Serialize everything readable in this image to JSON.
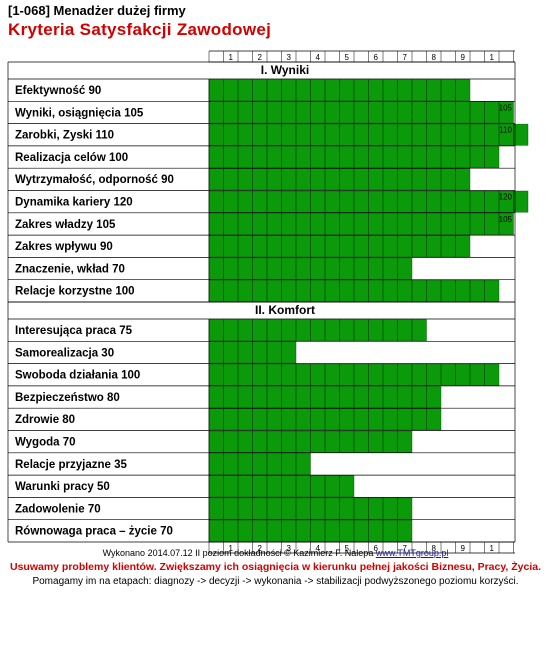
{
  "header": {
    "code": "[1-068]",
    "subtitle": "Menadżer dużej firmy",
    "title": "Kryteria Satysfakcji Zawodowej"
  },
  "colors": {
    "bar": "#0a9a0a",
    "bar_border": "#004d00",
    "title": "#d40000",
    "grid": "#000000"
  },
  "chart_data": {
    "type": "bar",
    "orientation": "horizontal",
    "scale_ticks": [
      "1",
      "2",
      "3",
      "4",
      "5",
      "6",
      "7",
      "8",
      "9",
      "1",
      ""
    ],
    "xlim": [
      0,
      110
    ],
    "sections": [
      {
        "name": "I.  Wyniki",
        "items": [
          {
            "label": "Efektywność  90",
            "value": 90,
            "data_label": ""
          },
          {
            "label": "Wyniki, osiągnięcia 105",
            "value": 105,
            "data_label": "105"
          },
          {
            "label": "Zarobki, Zyski  110",
            "value": 110,
            "data_label": "110"
          },
          {
            "label": "Realizacja celów  100",
            "value": 100,
            "data_label": ""
          },
          {
            "label": "Wytrzymałość, odporność 90",
            "value": 90,
            "data_label": ""
          },
          {
            "label": "Dynamika kariery 120",
            "value": 120,
            "data_label": "120"
          },
          {
            "label": "Zakres władzy 105",
            "value": 105,
            "data_label": "105"
          },
          {
            "label": "Zakres wpływu  90",
            "value": 90,
            "data_label": ""
          },
          {
            "label": "Znaczenie, wkład  70",
            "value": 70,
            "data_label": ""
          },
          {
            "label": "Relacje korzystne 100",
            "value": 100,
            "data_label": ""
          }
        ]
      },
      {
        "name": "II.  Komfort",
        "items": [
          {
            "label": "Interesująca praca 75",
            "value": 75,
            "data_label": ""
          },
          {
            "label": "Samorealizacja 30",
            "value": 30,
            "data_label": ""
          },
          {
            "label": "Swoboda działania 100",
            "value": 100,
            "data_label": ""
          },
          {
            "label": "Bezpieczeństwo 80",
            "value": 80,
            "data_label": ""
          },
          {
            "label": "Zdrowie 80",
            "value": 80,
            "data_label": ""
          },
          {
            "label": "Wygoda 70",
            "value": 70,
            "data_label": ""
          },
          {
            "label": "Relacje przyjazne 35",
            "value": 35,
            "data_label": ""
          },
          {
            "label": "Warunki pracy 50",
            "value": 50,
            "data_label": ""
          },
          {
            "label": "Zadowolenie 70",
            "value": 70,
            "data_label": ""
          },
          {
            "label": "Równowaga praca – życie 70",
            "value": 70,
            "data_label": ""
          }
        ]
      }
    ]
  },
  "footer": {
    "credit": "Wykonano 2014.07.12  II poziom dokładności   © Kazimierz F. Nalepa  ",
    "url": "www.TMTgroup.pl",
    "slogan": "Usuwamy problemy klientów. Zwiększamy ich osiągnięcia  w kierunku pełnej jakości  Biznesu,  Pracy, Życia.",
    "process": "Pomagamy im na etapach: diagnozy -> decyzji -> wykonania -> stabilizacji podwyższonego poziomu korzyści."
  }
}
